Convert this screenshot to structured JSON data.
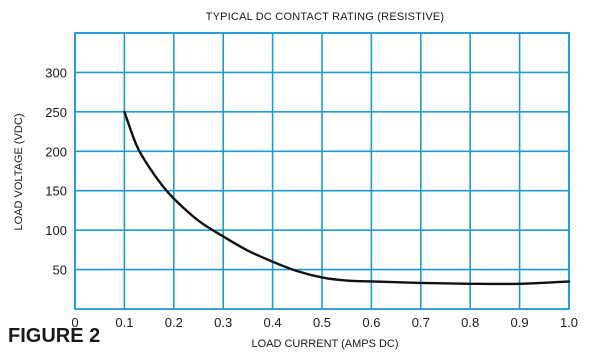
{
  "figure_label": "FIGURE 2",
  "chart_data": {
    "type": "line",
    "title": "TYPICAL DC CONTACT RATING (RESISTIVE)",
    "xlabel": "LOAD CURRENT (AMPS DC)",
    "ylabel": "LOAD VOLTAGE (VDC)",
    "xlim": [
      0,
      1.0
    ],
    "ylim": [
      0,
      350
    ],
    "x_ticks": [
      "0",
      "0.1",
      "0.2",
      "0.3",
      "0.4",
      "0.5",
      "0.6",
      "0.7",
      "0.8",
      "0.9",
      "1.0"
    ],
    "y_ticks": [
      "50",
      "100",
      "150",
      "200",
      "250",
      "300"
    ],
    "grid": true,
    "series": [
      {
        "x": [
          0.1,
          0.125,
          0.15,
          0.175,
          0.2,
          0.25,
          0.3,
          0.35,
          0.4,
          0.45,
          0.5,
          0.55,
          0.6,
          0.7,
          0.8,
          0.9,
          1.0
        ],
        "y": [
          250,
          207,
          180,
          158,
          140,
          112,
          92,
          74,
          60,
          48,
          40,
          36,
          35,
          33,
          32,
          32,
          35
        ]
      }
    ],
    "colors": {
      "grid": "#1f9ad6",
      "frame": "#1f9ad6",
      "line": "#111111"
    }
  }
}
